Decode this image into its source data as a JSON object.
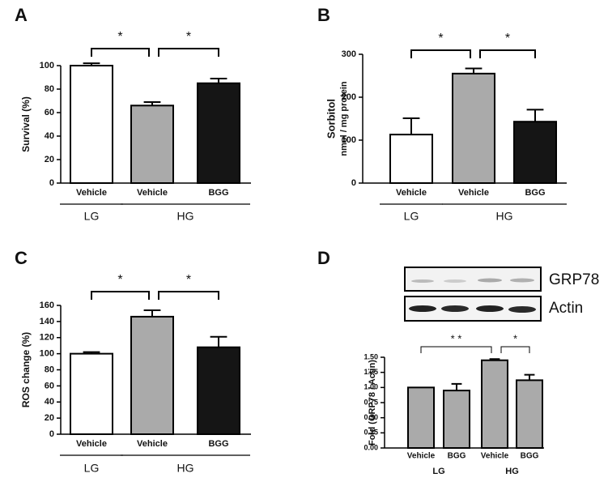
{
  "chart_data": [
    {
      "panel": "A",
      "type": "bar",
      "ylabel": "Survival (%)",
      "categories": [
        "Vehicle",
        "Vehicle",
        "BGG"
      ],
      "values": [
        100,
        66,
        85
      ],
      "errors": [
        2,
        3,
        4
      ],
      "colors": [
        "#ffffff",
        "#aaaaaa",
        "#151515"
      ],
      "ylim": [
        0,
        100
      ],
      "yticks": [
        0,
        20,
        40,
        60,
        80,
        100
      ],
      "groups": [
        {
          "name": "LG",
          "count": 1
        },
        {
          "name": "HG",
          "count": 2
        }
      ],
      "group_lines": true,
      "significance": [
        {
          "label": "*",
          "from": 0,
          "to": 1
        },
        {
          "label": "*",
          "from": 1,
          "to": 2
        }
      ]
    },
    {
      "panel": "B",
      "type": "bar",
      "ylabel": "Sorbitol",
      "ylabel2": "nmol / mg protein",
      "categories": [
        "Vehicle",
        "Vehicle",
        "BGG"
      ],
      "values": [
        113,
        255,
        143
      ],
      "errors": [
        38,
        12,
        28
      ],
      "colors": [
        "#ffffff",
        "#aaaaaa",
        "#151515"
      ],
      "ylim": [
        0,
        300
      ],
      "yticks": [
        0,
        100,
        200,
        300
      ],
      "groups": [
        {
          "name": "LG",
          "count": 1
        },
        {
          "name": "HG",
          "count": 2
        }
      ],
      "group_lines": true,
      "significance": [
        {
          "label": "*",
          "from": 0,
          "to": 1
        },
        {
          "label": "*",
          "from": 1,
          "to": 2
        }
      ]
    },
    {
      "panel": "C",
      "type": "bar",
      "ylabel": "ROS change (%)",
      "categories": [
        "Vehicle",
        "Vehicle",
        "BGG"
      ],
      "values": [
        100,
        146,
        108
      ],
      "errors": [
        2,
        8,
        13
      ],
      "colors": [
        "#ffffff",
        "#aaaaaa",
        "#151515"
      ],
      "ylim": [
        0,
        160
      ],
      "yticks": [
        0,
        20,
        40,
        60,
        80,
        100,
        120,
        140,
        160
      ],
      "groups": [
        {
          "name": "LG",
          "count": 1
        },
        {
          "name": "HG",
          "count": 2
        }
      ],
      "group_lines": true,
      "significance": [
        {
          "label": "*",
          "from": 0,
          "to": 1
        },
        {
          "label": "*",
          "from": 1,
          "to": 2
        }
      ]
    },
    {
      "panel": "D",
      "type": "bar",
      "ylabel": "Fold (GRP78 / Actin)",
      "categories": [
        "Vehicle",
        "BGG",
        "Vehicle",
        "BGG"
      ],
      "values": [
        1.0,
        0.95,
        1.45,
        1.12
      ],
      "errors": [
        null,
        0.11,
        0.02,
        0.09
      ],
      "colors": [
        "#aaaaaa",
        "#aaaaaa",
        "#aaaaaa",
        "#aaaaaa"
      ],
      "ylim": [
        0,
        1.5
      ],
      "yticks": [
        {
          "value": 0,
          "label": "0.00"
        },
        {
          "value": 0.25,
          "label": "0.25"
        },
        {
          "value": 0.5,
          "label": "0.50"
        },
        {
          "value": 0.75,
          "label": "0.75"
        },
        {
          "value": 1,
          "label": "1.00"
        },
        {
          "value": 1.25,
          "label": "1.25"
        },
        {
          "value": 1.5,
          "label": "1.50"
        }
      ],
      "groups": [
        {
          "name": "LG",
          "count": 2
        },
        {
          "name": "HG",
          "count": 2
        }
      ],
      "group_lines": false,
      "blot_labels": [
        "GRP78",
        "Actin"
      ],
      "significance": [
        {
          "label": "* *",
          "from": 0,
          "to": 2
        },
        {
          "label": "*",
          "from": 2,
          "to": 3
        }
      ]
    }
  ]
}
